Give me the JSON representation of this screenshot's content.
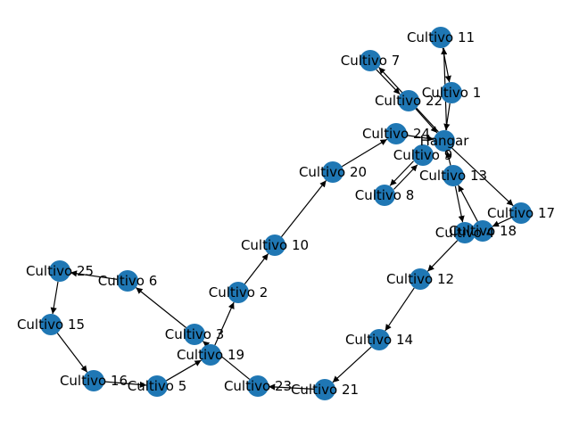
{
  "graph": {
    "node_color": "#1f77b4",
    "edge_color": "#000000",
    "label_color": "#000000",
    "nodes": [
      {
        "id": "hangar",
        "label": "Hangar"
      },
      {
        "id": "c1",
        "label": "Cultivo 1"
      },
      {
        "id": "c2",
        "label": "Cultivo 2"
      },
      {
        "id": "c3",
        "label": "Cultivo 3"
      },
      {
        "id": "c4",
        "label": "Cultivo 4"
      },
      {
        "id": "c5",
        "label": "Cultivo 5"
      },
      {
        "id": "c6",
        "label": "Cultivo 6"
      },
      {
        "id": "c7",
        "label": "Cultivo 7"
      },
      {
        "id": "c8",
        "label": "Cultivo 8"
      },
      {
        "id": "c9",
        "label": "Cultivo 9"
      },
      {
        "id": "c10",
        "label": "Cultivo 10"
      },
      {
        "id": "c11",
        "label": "Cultivo 11"
      },
      {
        "id": "c12",
        "label": "Cultivo 12"
      },
      {
        "id": "c13",
        "label": "Cultivo 13"
      },
      {
        "id": "c14",
        "label": "Cultivo 14"
      },
      {
        "id": "c15",
        "label": "Cultivo 15"
      },
      {
        "id": "c16",
        "label": "Cultivo 16"
      },
      {
        "id": "c17",
        "label": "Cultivo 17"
      },
      {
        "id": "c18",
        "label": "Cultivo 18"
      },
      {
        "id": "c19",
        "label": "Cultivo 19"
      },
      {
        "id": "c20",
        "label": "Cultivo 20"
      },
      {
        "id": "c21",
        "label": "Cultivo 21"
      },
      {
        "id": "c22",
        "label": "Cultivo 22"
      },
      {
        "id": "c23",
        "label": "Cultivo 23"
      },
      {
        "id": "c24",
        "label": "Cultivo 24"
      },
      {
        "id": "c25",
        "label": "Cultivo 25"
      }
    ],
    "edges": [
      {
        "from": "hangar",
        "to": "c11"
      },
      {
        "from": "c11",
        "to": "c1"
      },
      {
        "from": "c1",
        "to": "hangar"
      },
      {
        "from": "hangar",
        "to": "c7"
      },
      {
        "from": "c7",
        "to": "c22"
      },
      {
        "from": "c22",
        "to": "hangar"
      },
      {
        "from": "c24",
        "to": "hangar"
      },
      {
        "from": "hangar",
        "to": "c17"
      },
      {
        "from": "c17",
        "to": "c18"
      },
      {
        "from": "c18",
        "to": "c13"
      },
      {
        "from": "c13",
        "to": "c4"
      },
      {
        "from": "c13",
        "to": "hangar"
      },
      {
        "from": "c9",
        "to": "c8"
      },
      {
        "from": "c8",
        "to": "c9"
      },
      {
        "from": "c4",
        "to": "c12"
      },
      {
        "from": "c12",
        "to": "c14"
      },
      {
        "from": "c14",
        "to": "c21"
      },
      {
        "from": "c21",
        "to": "c23"
      },
      {
        "from": "c23",
        "to": "c3"
      },
      {
        "from": "c3",
        "to": "c6"
      },
      {
        "from": "c6",
        "to": "c25"
      },
      {
        "from": "c25",
        "to": "c15"
      },
      {
        "from": "c15",
        "to": "c16"
      },
      {
        "from": "c16",
        "to": "c5"
      },
      {
        "from": "c5",
        "to": "c19"
      },
      {
        "from": "c19",
        "to": "c2"
      },
      {
        "from": "c2",
        "to": "c10"
      },
      {
        "from": "c10",
        "to": "c20"
      },
      {
        "from": "c20",
        "to": "c24"
      }
    ]
  }
}
